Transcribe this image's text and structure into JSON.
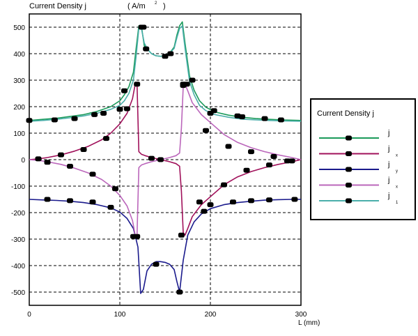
{
  "chart_data": {
    "type": "line",
    "title": "Current Density j",
    "unit_label": "( A/m",
    "unit_exponent": "2",
    "unit_close": ")",
    "xlabel": "L (mm)",
    "xlim": [
      0,
      300
    ],
    "ylim": [
      -550,
      550
    ],
    "x_ticks": [
      0,
      100,
      200,
      300
    ],
    "y_ticks": [
      500,
      400,
      300,
      200,
      100,
      0,
      -100,
      -200,
      -300,
      -400,
      -500
    ],
    "grid": true,
    "legend_position": "right",
    "legend_title": "Current Density j",
    "series": [
      {
        "name": "j",
        "subscript": "",
        "color": "#1a9a5a",
        "x": [
          0,
          15,
          30,
          45,
          60,
          75,
          90,
          100,
          105,
          110,
          115,
          118,
          121,
          124,
          127,
          131,
          135,
          140,
          145,
          150,
          155,
          160,
          163,
          166,
          169,
          172,
          177,
          182,
          188,
          195,
          205,
          220,
          235,
          250,
          265,
          280,
          300
        ],
        "y": [
          148,
          152,
          156,
          163,
          170,
          182,
          200,
          222,
          245,
          275,
          330,
          420,
          505,
          500,
          430,
          415,
          400,
          392,
          390,
          393,
          402,
          425,
          470,
          505,
          520,
          440,
          315,
          262,
          222,
          198,
          180,
          168,
          160,
          155,
          152,
          150,
          148
        ]
      },
      {
        "name": "j",
        "subscript": "x",
        "color": "#a0105a",
        "x": [
          0,
          10,
          20,
          35,
          50,
          65,
          80,
          90,
          100,
          108,
          114,
          117,
          119,
          121,
          124,
          128,
          135,
          145,
          155,
          162,
          166,
          168,
          170,
          172,
          175,
          180,
          190,
          200,
          215,
          230,
          245,
          260,
          275,
          290,
          300
        ],
        "y": [
          0,
          3,
          8,
          18,
          32,
          50,
          75,
          100,
          135,
          175,
          230,
          285,
          285,
          30,
          20,
          15,
          8,
          0,
          -8,
          -15,
          -25,
          -120,
          -275,
          -285,
          -260,
          -215,
          -170,
          -140,
          -95,
          -65,
          -45,
          -30,
          -18,
          -8,
          0
        ]
      },
      {
        "name": "j",
        "subscript": "y",
        "color": "#1a1a8c",
        "x": [
          0,
          15,
          30,
          45,
          60,
          75,
          90,
          100,
          108,
          115,
          120,
          123,
          126,
          130,
          135,
          140,
          145,
          150,
          155,
          160,
          163,
          166,
          170,
          175,
          182,
          190,
          200,
          215,
          230,
          245,
          260,
          275,
          290,
          300
        ],
        "y": [
          -150,
          -152,
          -154,
          -157,
          -162,
          -170,
          -182,
          -198,
          -222,
          -260,
          -330,
          -505,
          -490,
          -420,
          -395,
          -385,
          -385,
          -388,
          -395,
          -415,
          -460,
          -500,
          -380,
          -285,
          -235,
          -205,
          -185,
          -170,
          -162,
          -157,
          -153,
          -151,
          -150,
          -150
        ]
      },
      {
        "name": "j",
        "subscript": "x",
        "color": "#bb66bb",
        "x": [
          0,
          10,
          20,
          35,
          50,
          65,
          80,
          90,
          100,
          108,
          114,
          117,
          119,
          121,
          124,
          128,
          135,
          145,
          155,
          162,
          166,
          168,
          170,
          172,
          175,
          180,
          190,
          200,
          215,
          230,
          245,
          260,
          275,
          290,
          300
        ],
        "y": [
          0,
          -3,
          -8,
          -18,
          -32,
          -50,
          -75,
          -100,
          -135,
          -175,
          -230,
          -285,
          -285,
          -30,
          -20,
          -15,
          -8,
          0,
          8,
          15,
          25,
          120,
          275,
          285,
          260,
          215,
          170,
          140,
          95,
          65,
          45,
          30,
          18,
          8,
          0
        ]
      },
      {
        "name": "j",
        "subscript": "1",
        "color": "#4aaeaa",
        "x": [
          0,
          15,
          30,
          45,
          60,
          75,
          90,
          100,
          105,
          110,
          115,
          118,
          121,
          124,
          127,
          131,
          135,
          140,
          145,
          150,
          155,
          160,
          163,
          166,
          169,
          172,
          177,
          182,
          188,
          195,
          205,
          220,
          235,
          250,
          265,
          280,
          300
        ],
        "y": [
          145,
          148,
          152,
          158,
          165,
          175,
          190,
          205,
          222,
          250,
          300,
          390,
          495,
          492,
          440,
          415,
          400,
          392,
          390,
          393,
          402,
          420,
          460,
          495,
          505,
          420,
          295,
          245,
          205,
          185,
          170,
          160,
          153,
          150,
          148,
          146,
          145
        ]
      }
    ],
    "markers": [
      {
        "x": 0,
        "y": 148
      },
      {
        "x": 28,
        "y": 150
      },
      {
        "x": 50,
        "y": 155
      },
      {
        "x": 72,
        "y": 170
      },
      {
        "x": 82,
        "y": 175
      },
      {
        "x": 100,
        "y": 190
      },
      {
        "x": 108,
        "y": 192
      },
      {
        "x": 105,
        "y": 260
      },
      {
        "x": 124,
        "y": 500
      },
      {
        "x": 126,
        "y": 500
      },
      {
        "x": 129,
        "y": 418
      },
      {
        "x": 150,
        "y": 390
      },
      {
        "x": 156,
        "y": 400
      },
      {
        "x": 170,
        "y": 280
      },
      {
        "x": 174,
        "y": 285
      },
      {
        "x": 180,
        "y": 300
      },
      {
        "x": 200,
        "y": 175
      },
      {
        "x": 204,
        "y": 185
      },
      {
        "x": 230,
        "y": 165
      },
      {
        "x": 235,
        "y": 162
      },
      {
        "x": 260,
        "y": 155
      },
      {
        "x": 278,
        "y": 150
      },
      {
        "x": 10,
        "y": 3
      },
      {
        "x": 35,
        "y": 18
      },
      {
        "x": 60,
        "y": 38
      },
      {
        "x": 85,
        "y": 80
      },
      {
        "x": 119,
        "y": 285
      },
      {
        "x": 135,
        "y": 5
      },
      {
        "x": 145,
        "y": 0
      },
      {
        "x": 168,
        "y": -285
      },
      {
        "x": 188,
        "y": -160
      },
      {
        "x": 193,
        "y": -195
      },
      {
        "x": 215,
        "y": -95
      },
      {
        "x": 240,
        "y": -40
      },
      {
        "x": 265,
        "y": -20
      },
      {
        "x": 285,
        "y": -5
      },
      {
        "x": 20,
        "y": -150
      },
      {
        "x": 45,
        "y": -155
      },
      {
        "x": 70,
        "y": -160
      },
      {
        "x": 90,
        "y": -180
      },
      {
        "x": 115,
        "y": -290
      },
      {
        "x": 119,
        "y": -290
      },
      {
        "x": 140,
        "y": -395
      },
      {
        "x": 166,
        "y": -500
      },
      {
        "x": 200,
        "y": -170
      },
      {
        "x": 225,
        "y": -160
      },
      {
        "x": 245,
        "y": -155
      },
      {
        "x": 265,
        "y": -152
      },
      {
        "x": 293,
        "y": -150
      },
      {
        "x": 20,
        "y": -10
      },
      {
        "x": 45,
        "y": -25
      },
      {
        "x": 70,
        "y": -55
      },
      {
        "x": 95,
        "y": -110
      },
      {
        "x": 170,
        "y": 285
      },
      {
        "x": 195,
        "y": 110
      },
      {
        "x": 220,
        "y": 50
      },
      {
        "x": 245,
        "y": 30
      },
      {
        "x": 270,
        "y": 12
      },
      {
        "x": 290,
        "y": -5
      }
    ]
  }
}
